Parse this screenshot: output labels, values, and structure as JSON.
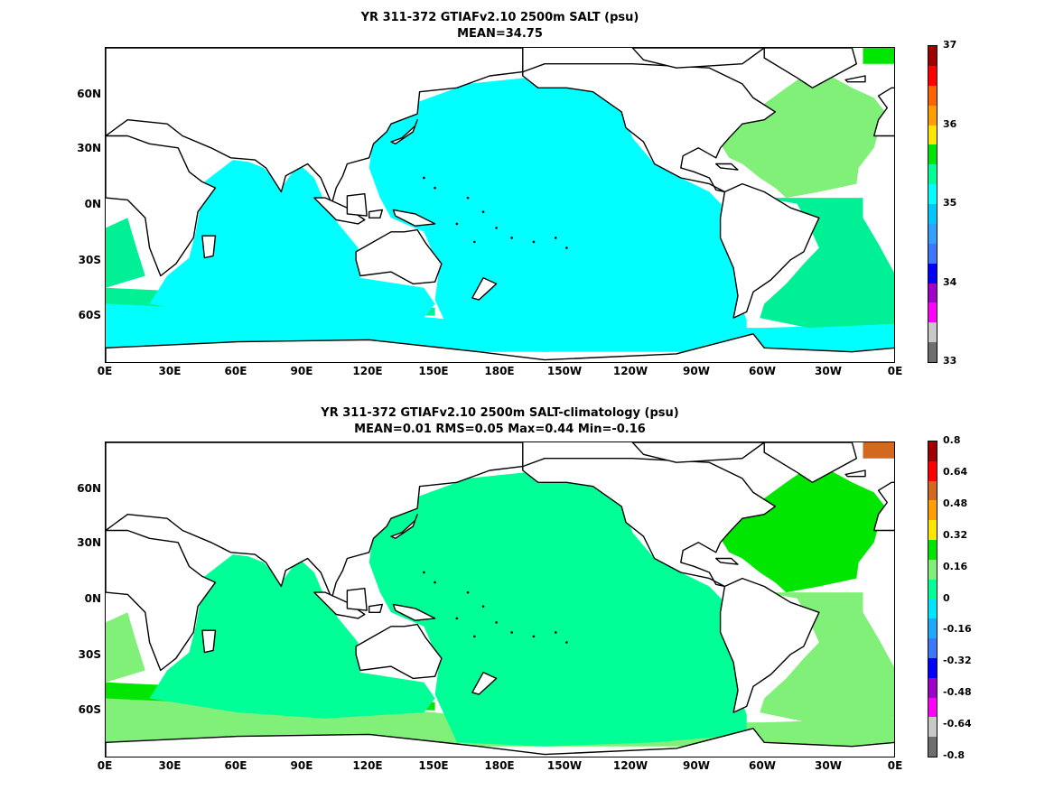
{
  "panels": [
    {
      "id": "salt",
      "title_line1": "YR 311-372 GTIAFv2.10 2500m SALT (psu)",
      "title_line2": "MEAN=34.75",
      "lat_labels": [
        "60N",
        "30N",
        "0N",
        "30S",
        "60S"
      ],
      "lon_labels": [
        "0E",
        "30E",
        "60E",
        "90E",
        "120E",
        "150E",
        "180E",
        "150W",
        "120W",
        "90W",
        "60W",
        "30W",
        "0E"
      ],
      "colorbar": {
        "colors": [
          "#6e6e6e",
          "#c8c8c8",
          "#ff00ff",
          "#a000c8",
          "#0000ff",
          "#3c78ff",
          "#32a0ff",
          "#00c8ff",
          "#00ffff",
          "#00ff96",
          "#00e600",
          "#ffe600",
          "#ffa000",
          "#ff6400",
          "#ff0000",
          "#a00000"
        ],
        "tick_labels": [
          "33",
          "34",
          "35",
          "36",
          "37"
        ],
        "tick_values": [
          33,
          34,
          35,
          36,
          37
        ],
        "range": [
          33,
          37
        ]
      }
    },
    {
      "id": "salt-anomaly",
      "title_line1": "YR 311-372 GTIAFv2.10 2500m SALT-climatology (psu)",
      "title_line2": "MEAN=0.01   RMS=0.05   Max=0.44   Min=-0.16",
      "lat_labels": [
        "60N",
        "30N",
        "0N",
        "30S",
        "60S"
      ],
      "lon_labels": [
        "0E",
        "30E",
        "60E",
        "90E",
        "120E",
        "150E",
        "180E",
        "150W",
        "120W",
        "90W",
        "60W",
        "30W",
        "0E"
      ],
      "colorbar": {
        "colors": [
          "#6e6e6e",
          "#c8c8c8",
          "#ff00ff",
          "#a000c8",
          "#0000ff",
          "#3c78ff",
          "#1eaaff",
          "#00e6ff",
          "#00ff96",
          "#80f078",
          "#00e600",
          "#ffe600",
          "#ffa000",
          "#d2691e",
          "#ff0000",
          "#a00000"
        ],
        "tick_labels": [
          "0.8",
          "0.64",
          "0.48",
          "0.32",
          "0.16",
          "0",
          "-0.16",
          "-0.32",
          "-0.48",
          "-0.64",
          "-0.8"
        ],
        "tick_values": [
          0.8,
          0.64,
          0.48,
          0.32,
          0.16,
          0,
          -0.16,
          -0.32,
          -0.48,
          -0.64,
          -0.8
        ],
        "range": [
          -0.8,
          0.8
        ]
      }
    }
  ],
  "map_colors": {
    "salt": {
      "pacific": "#00ffff",
      "indian": "#00ffff",
      "atlantic_north": "#80f078",
      "atlantic_south": "#00f096",
      "southern": "#00ffff",
      "southern_band": "#00f096",
      "arctic": "#00e600"
    },
    "salt-anomaly": {
      "pacific": "#00ff96",
      "indian": "#00ff96",
      "atlantic_north": "#00e600",
      "atlantic_south": "#80f078",
      "southern": "#80f078",
      "southern_band": "#00e600",
      "arctic": "#d2691e"
    }
  }
}
